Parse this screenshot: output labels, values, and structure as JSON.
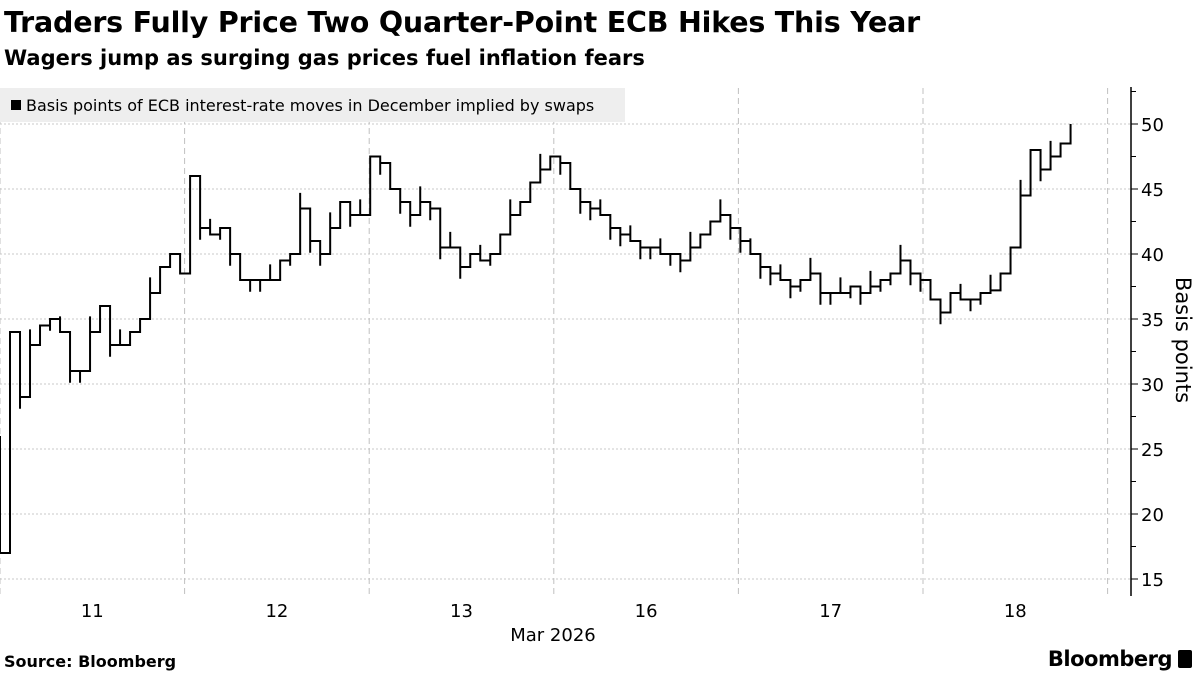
{
  "header": {
    "title": "Traders Fully Price Two Quarter-Point ECB Hikes This Year",
    "subtitle": "Wagers jump as surging gas prices fuel inflation fears"
  },
  "footer": {
    "source": "Source: Bloomberg",
    "logo": "Bloomberg"
  },
  "chart_data": {
    "type": "line",
    "title": "Traders Fully Price Two Quarter-Point ECB Hikes This Year",
    "subtitle": "Wagers jump as surging gas prices fuel inflation fears",
    "legend": {
      "label": "Basis points of ECB interest-rate moves in December implied by swaps",
      "placement": "top-left"
    },
    "xlabel": "Mar 2026",
    "ylabel": "Basis points",
    "x_tick_labels": [
      "11",
      "12",
      "13",
      "16",
      "17",
      "18"
    ],
    "y_ticks": [
      15,
      20,
      25,
      30,
      35,
      40,
      45,
      50
    ],
    "ylim": [
      14,
      53
    ],
    "x_unit": "trading days from start of Mar 11",
    "xlim": [
      0,
      6.1
    ],
    "x_step_days": 0.0542,
    "grid": true,
    "series": [
      {
        "name": "Basis points of ECB interest-rate moves in December implied by swaps",
        "color": "#000000",
        "values": [
          17,
          34,
          29,
          33,
          34.5,
          35,
          34,
          31,
          31,
          34,
          36,
          33,
          33,
          34,
          35,
          37,
          39,
          40,
          38.5,
          46,
          42,
          41.5,
          42,
          40,
          38,
          38,
          38,
          38,
          39.5,
          40,
          43.5,
          41,
          40,
          42,
          44,
          43,
          43,
          47.5,
          47,
          45,
          44,
          43,
          44,
          43.5,
          40.5,
          40.5,
          39,
          40,
          39.5,
          40,
          41.5,
          43,
          44,
          45.5,
          46.5,
          47.5,
          47,
          45,
          44,
          43.5,
          43,
          42,
          41.5,
          41,
          40.5,
          40.5,
          40,
          40,
          39.5,
          40.5,
          41.5,
          42.5,
          43,
          42,
          41,
          40,
          39,
          38.5,
          38,
          37.5,
          38,
          38.5,
          37,
          37,
          37,
          37.5,
          37,
          37.5,
          38,
          38.5,
          39.5,
          38.5,
          38,
          36.5,
          35.5,
          37,
          36.5,
          36.5,
          37,
          37.2,
          38.5,
          40.5,
          44.5,
          48,
          46.5,
          47.5,
          48.5,
          50
        ]
      }
    ]
  }
}
